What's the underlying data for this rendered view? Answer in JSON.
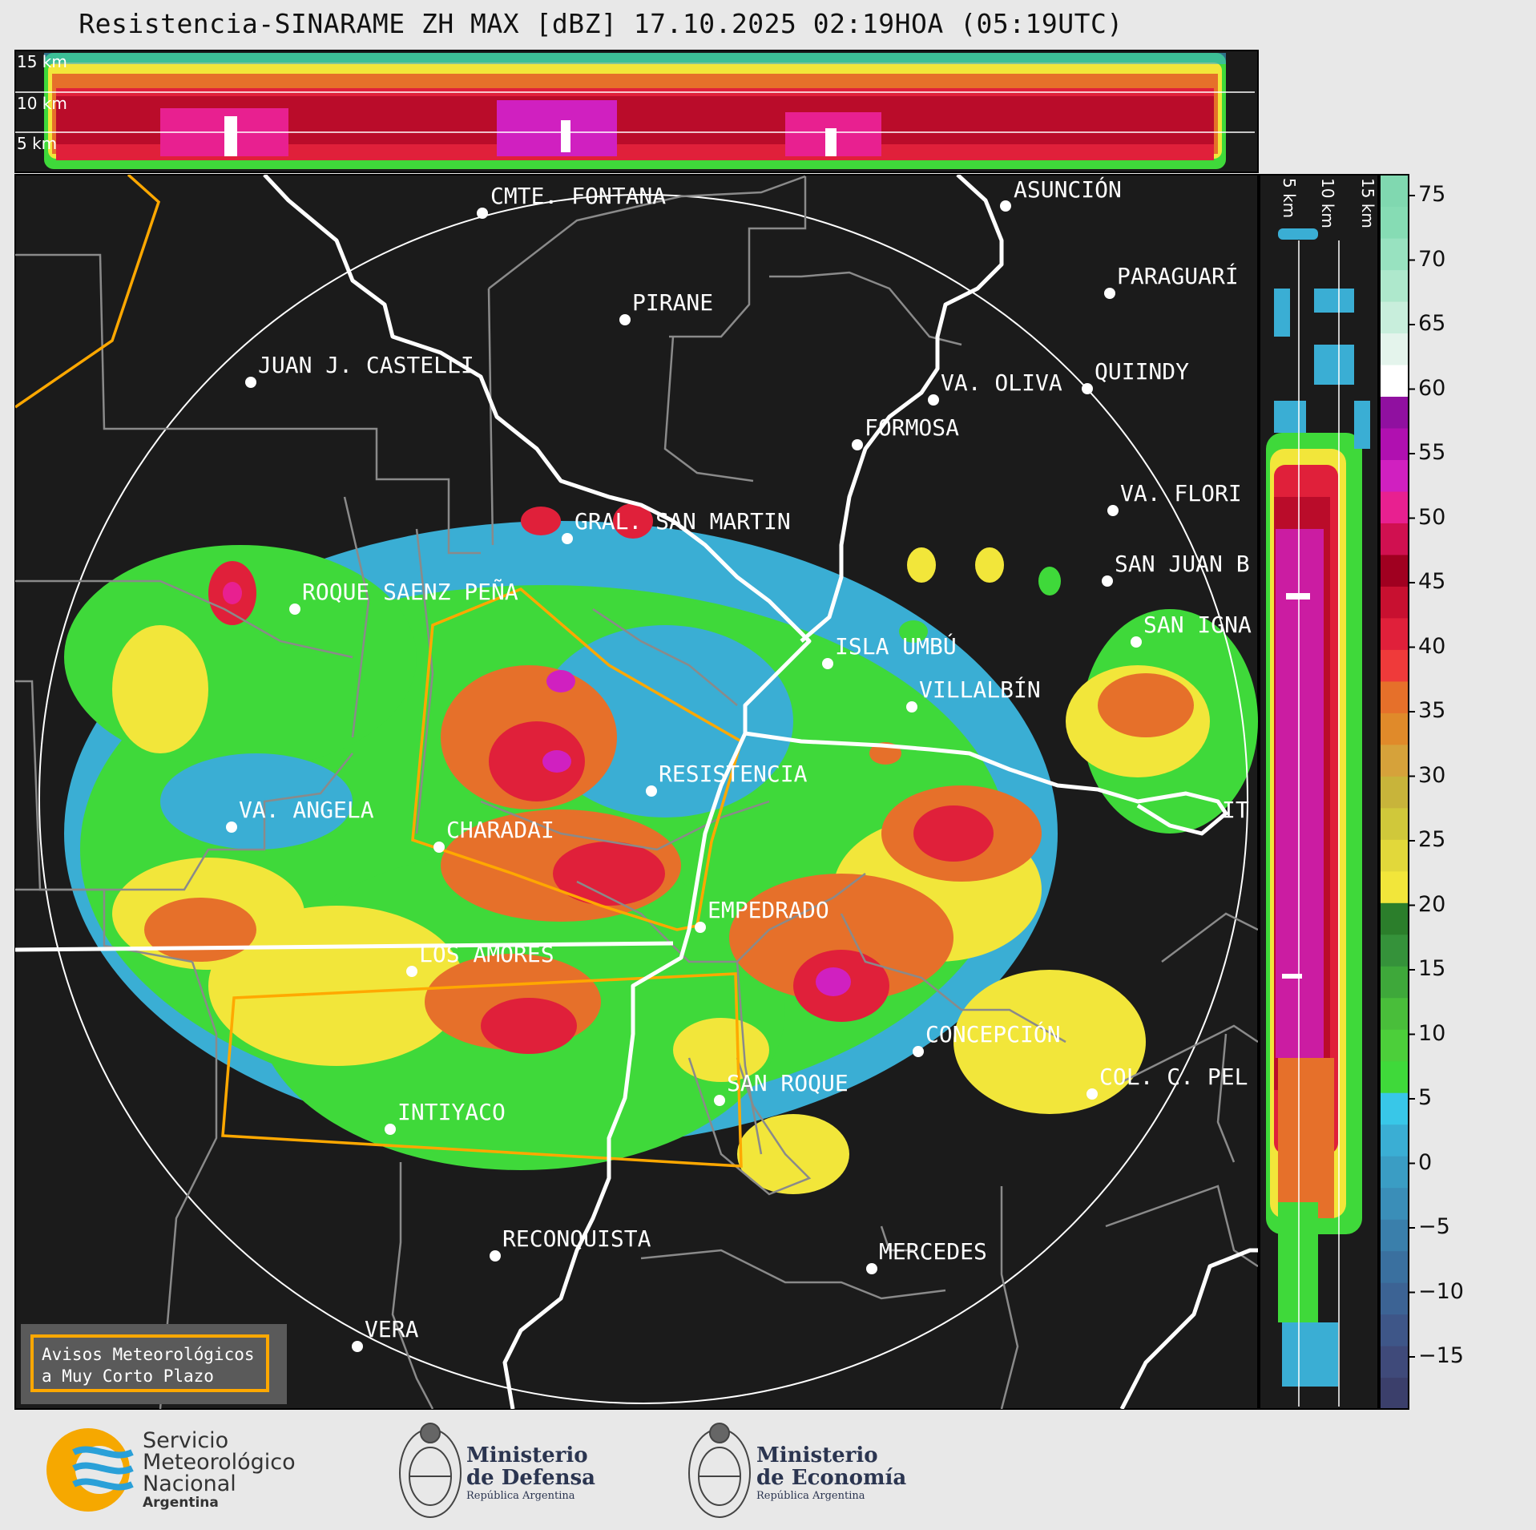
{
  "title": "Resistencia-SINARAME ZH MAX [dBZ] 17.10.2025 02:19HOA (05:19UTC)",
  "height_labels": {
    "h15": "15 km",
    "h10": "10 km",
    "h5": "5 km"
  },
  "cities": [
    {
      "name": "CMTE. FONTANA"
    },
    {
      "name": "ASUNCIÓN"
    },
    {
      "name": "PIRANE"
    },
    {
      "name": "PARAGUARÍ"
    },
    {
      "name": "JUAN J. CASTELLI"
    },
    {
      "name": "VA. OLIVA"
    },
    {
      "name": "QUIINDY"
    },
    {
      "name": "FORMOSA"
    },
    {
      "name": "VA. FLORI"
    },
    {
      "name": "GRAL. SAN MARTIN"
    },
    {
      "name": "SAN JUAN B"
    },
    {
      "name": "ROQUE SAENZ PEÑA"
    },
    {
      "name": "SAN IGNA"
    },
    {
      "name": "ISLA UMBÚ"
    },
    {
      "name": "VILLALBÍN"
    },
    {
      "name": "RESISTENCIA"
    },
    {
      "name": "VA. ANGELA"
    },
    {
      "name": "CHARADAI"
    },
    {
      "name": "IT"
    },
    {
      "name": "EMPEDRADO"
    },
    {
      "name": "LOS AMORES"
    },
    {
      "name": "CONCEPCIÓN"
    },
    {
      "name": "COL. C. PEL"
    },
    {
      "name": "SAN ROQUE"
    },
    {
      "name": "INTIYACO"
    },
    {
      "name": "RECONQUISTA"
    },
    {
      "name": "MERCEDES"
    },
    {
      "name": "VERA"
    }
  ],
  "colorbar": {
    "unit": "dBZ",
    "ticks": [
      "75",
      "70",
      "65",
      "60",
      "55",
      "50",
      "45",
      "40",
      "35",
      "30",
      "25",
      "20",
      "15",
      "10",
      "5",
      "0",
      "−5",
      "−10",
      "−15"
    ],
    "colors": [
      "#3b3f6b",
      "#3f4a7a",
      "#3e5688",
      "#3c6394",
      "#3a709f",
      "#3a7fab",
      "#3a8eb8",
      "#3a9dc4",
      "#3aaed4",
      "#38c7e8",
      "#3fd93a",
      "#4ccf3a",
      "#49be3a",
      "#3ea83a",
      "#35923a",
      "#2b7e2b",
      "#f2e63a",
      "#e2d83a",
      "#d0c83a",
      "#c8b43a",
      "#d6a23a",
      "#e08a2a",
      "#e6702a",
      "#ef3a3a",
      "#e0203a",
      "#c81030",
      "#a00020",
      "#d01050",
      "#e82090",
      "#d020c0",
      "#b010b0",
      "#9010a0",
      "#ffffff",
      "#e4f4ec",
      "#c8eedc",
      "#aee8cc",
      "#98e2c0",
      "#86dcb4",
      "#80d8b0"
    ]
  },
  "inset": {
    "text_line1": "Avisos Meteorológicos",
    "text_line2": "a Muy Corto Plazo"
  },
  "logos": {
    "smn": {
      "line1": "Servicio",
      "line2": "Meteorológico",
      "line3": "Nacional",
      "line4": "Argentina"
    },
    "defensa": {
      "line1": "Ministerio",
      "line2": "de Defensa",
      "line3": "República Argentina"
    },
    "economia": {
      "line1": "Ministerio",
      "line2": "de Economía",
      "line3": "República Argentina"
    }
  }
}
